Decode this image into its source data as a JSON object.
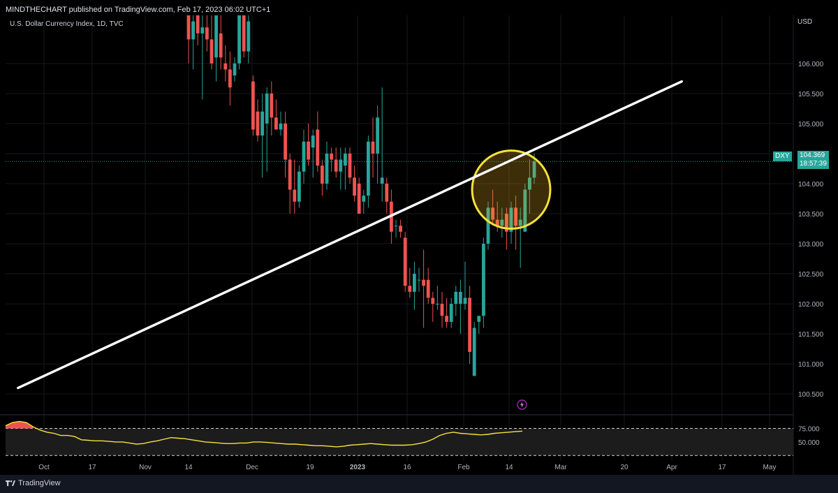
{
  "header": {
    "publisher_text": "MINDTHECHART published on TradingView.com, Feb 17, 2023 06:02 UTC+1",
    "symbol_text": "U.S. Dollar Currency Index, 1D, TVC",
    "currency": "USD"
  },
  "price_tag": {
    "symbol": "DXY",
    "price": "104.369",
    "countdown": "18:57:39"
  },
  "footer": {
    "brand": "TradingView"
  },
  "colors": {
    "up": "#26a69a",
    "down": "#ef5350",
    "trendline": "#ffffff",
    "highlight_circle": "#f5e23a",
    "indicator_line": "#f5e23a",
    "background": "#000000"
  },
  "chart_data": {
    "type": "candlestick",
    "title": "U.S. Dollar Currency Index, 1D, TVC",
    "y_axis_unit": "USD",
    "ylim": [
      100.2,
      106.8
    ],
    "y_ticks": [
      100.5,
      101.0,
      101.5,
      102.0,
      102.5,
      103.0,
      103.5,
      104.0,
      104.5,
      105.0,
      105.5,
      106.0
    ],
    "y_tick_labels": [
      "100.500",
      "101.000",
      "101.500",
      "102.000",
      "102.500",
      "103.000",
      "103.500",
      "104.000",
      "104.500",
      "105.000",
      "105.500",
      "106.000"
    ],
    "x_tick_labels": [
      "Oct",
      "17",
      "Nov",
      "14",
      "Dec",
      "19",
      "2023",
      "16",
      "Feb",
      "14",
      "Mar",
      "20",
      "Apr",
      "17",
      "May"
    ],
    "last_price": 104.369,
    "candles": [
      {
        "o": 106.8,
        "h": 107.0,
        "l": 106.0,
        "c": 106.4
      },
      {
        "o": 106.4,
        "h": 107.0,
        "l": 105.9,
        "c": 106.7
      },
      {
        "o": 106.8,
        "h": 107.0,
        "l": 106.3,
        "c": 106.5
      },
      {
        "o": 106.5,
        "h": 106.9,
        "l": 105.4,
        "c": 106.6
      },
      {
        "o": 106.6,
        "h": 106.9,
        "l": 106.2,
        "c": 106.4
      },
      {
        "o": 106.4,
        "h": 107.0,
        "l": 105.9,
        "c": 106.0
      },
      {
        "o": 106.1,
        "h": 107.0,
        "l": 105.7,
        "c": 106.8
      },
      {
        "o": 106.5,
        "h": 107.0,
        "l": 105.9,
        "c": 106.1
      },
      {
        "o": 106.0,
        "h": 106.3,
        "l": 105.7,
        "c": 105.9
      },
      {
        "o": 105.9,
        "h": 106.2,
        "l": 105.3,
        "c": 105.6
      },
      {
        "o": 105.8,
        "h": 106.1,
        "l": 105.7,
        "c": 106.0
      },
      {
        "o": 106.0,
        "h": 106.9,
        "l": 105.9,
        "c": 106.8
      },
      {
        "o": 106.8,
        "h": 107.0,
        "l": 106.1,
        "c": 106.2
      },
      {
        "o": 106.2,
        "h": 106.9,
        "l": 106.0,
        "c": 106.7
      },
      {
        "o": 105.7,
        "h": 105.8,
        "l": 104.8,
        "c": 104.9
      },
      {
        "o": 105.2,
        "h": 105.4,
        "l": 104.7,
        "c": 104.8
      },
      {
        "o": 104.8,
        "h": 105.5,
        "l": 104.1,
        "c": 105.2
      },
      {
        "o": 105.0,
        "h": 105.6,
        "l": 104.2,
        "c": 105.5
      },
      {
        "o": 105.5,
        "h": 105.7,
        "l": 104.8,
        "c": 105.1
      },
      {
        "o": 105.1,
        "h": 105.4,
        "l": 104.9,
        "c": 104.9
      },
      {
        "o": 104.9,
        "h": 105.2,
        "l": 104.8,
        "c": 105.0
      },
      {
        "o": 105.0,
        "h": 105.2,
        "l": 104.1,
        "c": 104.4
      },
      {
        "o": 104.4,
        "h": 104.5,
        "l": 103.5,
        "c": 103.9
      },
      {
        "o": 103.9,
        "h": 104.4,
        "l": 103.5,
        "c": 103.7
      },
      {
        "o": 103.7,
        "h": 104.3,
        "l": 103.6,
        "c": 104.2
      },
      {
        "o": 104.2,
        "h": 104.9,
        "l": 104.0,
        "c": 104.7
      },
      {
        "o": 104.7,
        "h": 105.0,
        "l": 104.3,
        "c": 104.4
      },
      {
        "o": 104.6,
        "h": 104.9,
        "l": 104.1,
        "c": 104.8
      },
      {
        "o": 104.9,
        "h": 105.2,
        "l": 104.2,
        "c": 104.3
      },
      {
        "o": 104.3,
        "h": 104.4,
        "l": 103.8,
        "c": 104.0
      },
      {
        "o": 104.0,
        "h": 104.7,
        "l": 103.9,
        "c": 104.5
      },
      {
        "o": 104.5,
        "h": 104.6,
        "l": 104.2,
        "c": 104.4
      },
      {
        "o": 104.4,
        "h": 104.6,
        "l": 104.1,
        "c": 104.2
      },
      {
        "o": 104.2,
        "h": 104.6,
        "l": 103.9,
        "c": 104.4
      },
      {
        "o": 104.3,
        "h": 104.6,
        "l": 103.9,
        "c": 104.5
      },
      {
        "o": 104.5,
        "h": 104.6,
        "l": 104.0,
        "c": 104.1
      },
      {
        "o": 104.1,
        "h": 104.3,
        "l": 103.7,
        "c": 103.8
      },
      {
        "o": 104.0,
        "h": 104.1,
        "l": 103.5,
        "c": 103.5
      },
      {
        "o": 103.7,
        "h": 103.9,
        "l": 103.5,
        "c": 103.8
      },
      {
        "o": 103.8,
        "h": 104.8,
        "l": 103.6,
        "c": 104.7
      },
      {
        "o": 104.7,
        "h": 105.1,
        "l": 104.1,
        "c": 104.5
      },
      {
        "o": 104.5,
        "h": 105.3,
        "l": 104.0,
        "c": 105.1
      },
      {
        "o": 104.0,
        "h": 105.6,
        "l": 103.7,
        "c": 104.1
      },
      {
        "o": 104.0,
        "h": 104.1,
        "l": 103.5,
        "c": 103.7
      },
      {
        "o": 103.7,
        "h": 103.9,
        "l": 103.0,
        "c": 103.2
      },
      {
        "o": 103.3,
        "h": 103.4,
        "l": 103.1,
        "c": 103.3
      },
      {
        "o": 103.3,
        "h": 103.4,
        "l": 103.1,
        "c": 103.2
      },
      {
        "o": 103.1,
        "h": 103.2,
        "l": 102.2,
        "c": 102.3
      },
      {
        "o": 102.3,
        "h": 102.6,
        "l": 102.1,
        "c": 102.2
      },
      {
        "o": 102.2,
        "h": 102.7,
        "l": 101.9,
        "c": 102.5
      },
      {
        "o": 102.4,
        "h": 102.6,
        "l": 102.2,
        "c": 102.4
      },
      {
        "o": 102.4,
        "h": 102.9,
        "l": 101.6,
        "c": 102.3
      },
      {
        "o": 102.4,
        "h": 102.6,
        "l": 102.0,
        "c": 102.1
      },
      {
        "o": 102.1,
        "h": 102.2,
        "l": 101.7,
        "c": 102.0
      },
      {
        "o": 102.0,
        "h": 102.3,
        "l": 101.9,
        "c": 102.0
      },
      {
        "o": 102.0,
        "h": 102.2,
        "l": 101.6,
        "c": 101.8
      },
      {
        "o": 101.8,
        "h": 102.1,
        "l": 101.6,
        "c": 101.7
      },
      {
        "o": 101.7,
        "h": 102.1,
        "l": 101.6,
        "c": 102.0
      },
      {
        "o": 102.0,
        "h": 102.3,
        "l": 101.8,
        "c": 102.2
      },
      {
        "o": 102.0,
        "h": 102.4,
        "l": 101.5,
        "c": 102.2
      },
      {
        "o": 102.0,
        "h": 102.7,
        "l": 101.9,
        "c": 102.1
      },
      {
        "o": 102.1,
        "h": 102.3,
        "l": 101.0,
        "c": 101.2
      },
      {
        "o": 100.8,
        "h": 101.7,
        "l": 100.8,
        "c": 101.6
      },
      {
        "o": 101.7,
        "h": 101.8,
        "l": 101.5,
        "c": 101.8
      },
      {
        "o": 101.8,
        "h": 103.1,
        "l": 101.6,
        "c": 103.0
      },
      {
        "o": 103.0,
        "h": 103.7,
        "l": 102.9,
        "c": 103.6
      },
      {
        "o": 103.6,
        "h": 103.9,
        "l": 103.3,
        "c": 103.4
      },
      {
        "o": 103.4,
        "h": 103.7,
        "l": 103.2,
        "c": 103.3
      },
      {
        "o": 103.3,
        "h": 103.6,
        "l": 103.1,
        "c": 103.4
      },
      {
        "o": 103.5,
        "h": 103.6,
        "l": 102.9,
        "c": 103.2
      },
      {
        "o": 103.2,
        "h": 103.7,
        "l": 103.0,
        "c": 103.6
      },
      {
        "o": 103.6,
        "h": 103.8,
        "l": 102.9,
        "c": 103.3
      },
      {
        "o": 103.3,
        "h": 103.6,
        "l": 102.6,
        "c": 103.4
      },
      {
        "o": 103.2,
        "h": 104.0,
        "l": 103.2,
        "c": 103.9
      },
      {
        "o": 103.9,
        "h": 104.4,
        "l": 103.5,
        "c": 104.1
      },
      {
        "o": 104.1,
        "h": 104.5,
        "l": 104.0,
        "c": 104.369
      }
    ],
    "trendline": {
      "start": {
        "i": -37,
        "price": 100.6
      },
      "end": {
        "i": 107,
        "price": 105.7
      }
    },
    "highlight": {
      "center_i": 70,
      "center_price": 103.9,
      "radius_price": 0.65
    },
    "indicator": {
      "type": "oscillator",
      "levels": [
        75,
        50,
        25
      ],
      "level_labels": [
        "75.000",
        "50.000"
      ],
      "ylim": [
        15,
        95
      ],
      "values": [
        80,
        86,
        88,
        86,
        78,
        72,
        68,
        66,
        62,
        62,
        60,
        54,
        53,
        52,
        52,
        51,
        50,
        50,
        48,
        46,
        47,
        50,
        52,
        55,
        58,
        57,
        56,
        54,
        52,
        50,
        49,
        48,
        47,
        47,
        48,
        48,
        50,
        50,
        49,
        48,
        47,
        46,
        46,
        45,
        44,
        43,
        43,
        42,
        41,
        42,
        44,
        45,
        46,
        47,
        46,
        45,
        44,
        44,
        44,
        45,
        47,
        50,
        55,
        62,
        66,
        68,
        66,
        65,
        64,
        63,
        64,
        66,
        67,
        68,
        69,
        70
      ]
    }
  }
}
